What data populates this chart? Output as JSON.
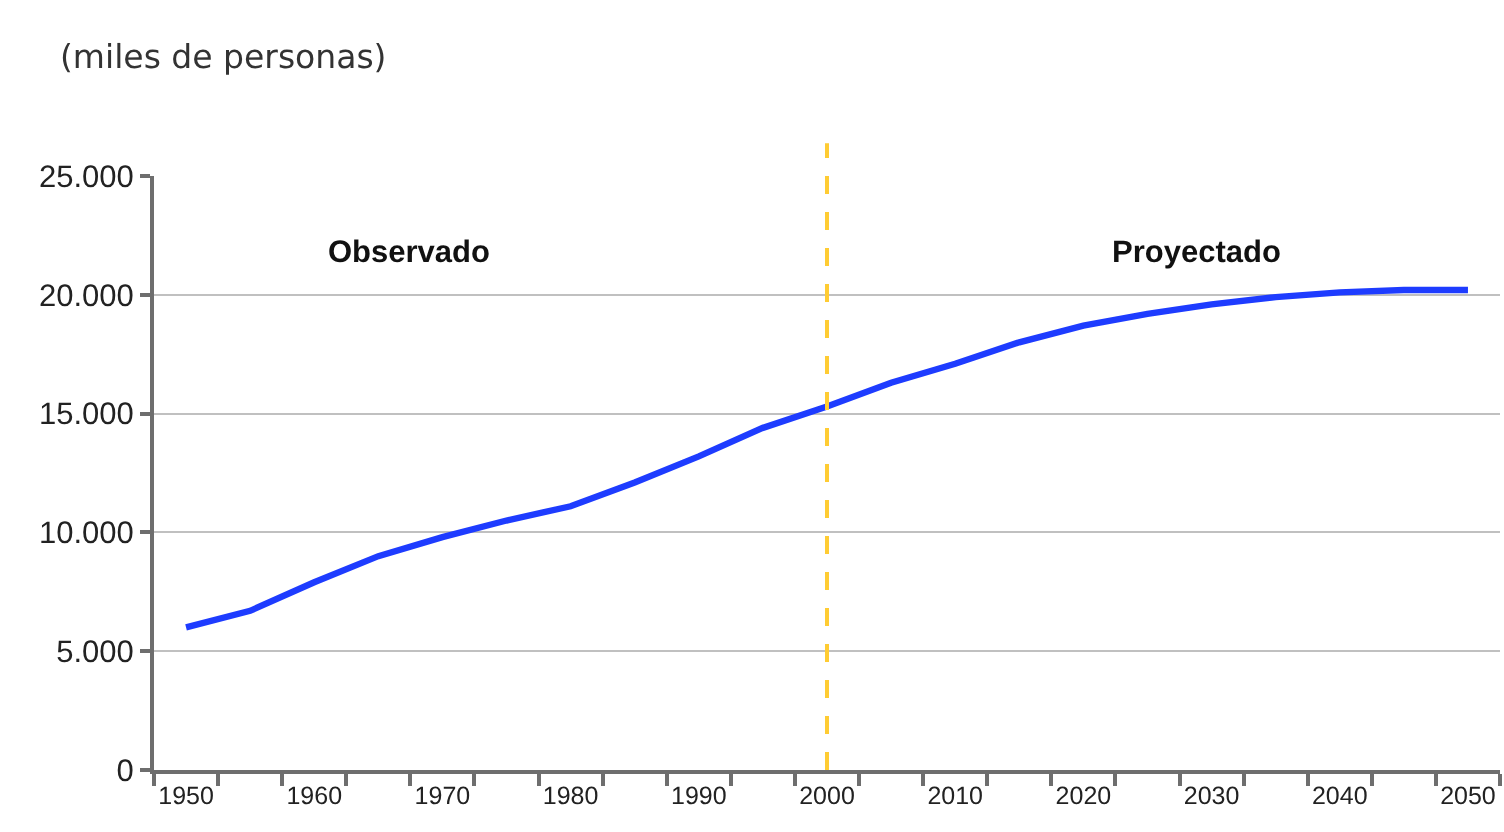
{
  "chart_data": {
    "type": "line",
    "ylabel": "(miles de personas)",
    "x": [
      1950,
      1955,
      1960,
      1965,
      1970,
      1975,
      1980,
      1985,
      1990,
      1995,
      2000,
      2005,
      2010,
      2015,
      2020,
      2025,
      2030,
      2035,
      2040,
      2045,
      2050
    ],
    "series": [
      {
        "color": "#1e3cff",
        "values": [
          6000,
          6700,
          7900,
          9000,
          9800,
          10500,
          11100,
          12100,
          13200,
          14400,
          15300,
          16300,
          17100,
          18000,
          18700,
          19200,
          19600,
          19900,
          20100,
          20200,
          20200
        ]
      }
    ],
    "xlim": [
      1947.5,
      2052.5
    ],
    "xticks": [
      1950,
      1960,
      1970,
      1980,
      1990,
      2000,
      2010,
      2020,
      2030,
      2040,
      2050,
      {
        "value": 1947.5,
        "label": null
      },
      {
        "value": 1952.5,
        "label": null
      },
      {
        "value": 1957.5,
        "label": null
      },
      {
        "value": 1962.5,
        "label": null
      },
      {
        "value": 1967.5,
        "label": null
      },
      {
        "value": 1972.5,
        "label": null
      },
      {
        "value": 1977.5,
        "label": null
      },
      {
        "value": 1982.5,
        "label": null
      },
      {
        "value": 1987.5,
        "label": null
      },
      {
        "value": 1992.5,
        "label": null
      },
      {
        "value": 1997.5,
        "label": null
      },
      {
        "value": 2002.5,
        "label": null
      },
      {
        "value": 2007.5,
        "label": null
      },
      {
        "value": 2012.5,
        "label": null
      },
      {
        "value": 2017.5,
        "label": null
      },
      {
        "value": 2022.5,
        "label": null
      },
      {
        "value": 2027.5,
        "label": null
      },
      {
        "value": 2032.5,
        "label": null
      },
      {
        "value": 2037.5,
        "label": null
      },
      {
        "value": 2042.5,
        "label": null
      },
      {
        "value": 2047.5,
        "label": null
      },
      {
        "value": 2052.5,
        "label": null
      }
    ],
    "ylim": [
      0,
      25000
    ],
    "yticks": [
      0,
      {
        "value": 5000,
        "label": "5.000"
      },
      {
        "value": 10000,
        "label": "10.000"
      },
      {
        "value": 15000,
        "label": "15.000"
      },
      {
        "value": 20000,
        "label": "20.000"
      },
      {
        "value": 25000,
        "label": "25.000"
      }
    ],
    "grid": "y",
    "ref_lines": [
      {
        "axis": "x",
        "value": 2000,
        "color": "#ffcc33",
        "line_style": "dashed"
      }
    ],
    "annotations": [
      "Observado",
      "Proyectado"
    ]
  }
}
